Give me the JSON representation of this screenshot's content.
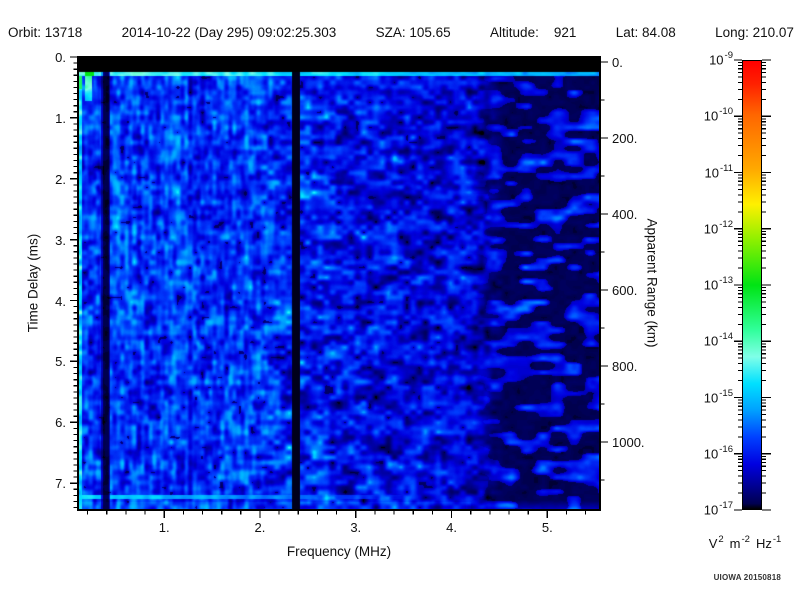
{
  "header": {
    "segments": [
      "Orbit: 13718",
      "2014-10-22 (Day 295) 09:02:25.303",
      "SZA: 105.65",
      "Altitude:    921",
      "Lat: 84.08",
      "Long: 210.07"
    ]
  },
  "plot": {
    "xlabel": "Frequency (MHz)",
    "ylabel": "Time Delay (ms)",
    "y2label": "Apparent Range (km)",
    "x_tick_labels": [
      "1.",
      "2.",
      "3.",
      "4.",
      "5."
    ],
    "y_tick_labels": [
      "0.",
      "1.",
      "2.",
      "3.",
      "4.",
      "5.",
      "6.",
      "7."
    ],
    "y2_tick_labels": [
      "0.",
      "200.",
      "400.",
      "600.",
      "800.",
      "1000."
    ]
  },
  "colorbar": {
    "base": "10",
    "exponents": [
      "-9",
      "-10",
      "-11",
      "-12",
      "-13",
      "-14",
      "-15",
      "-16",
      "-17"
    ],
    "unit_parts": [
      {
        "t": "V",
        "e": "2"
      },
      {
        "t": "m",
        "e": "-2"
      },
      {
        "t": "Hz",
        "e": "-1"
      }
    ]
  },
  "credit": "UIOWA 20150818",
  "chart_data": {
    "type": "heatmap",
    "description": "Radar sounder ionogram spectrogram: spectral density vs frequency and time delay. Noisy blue field with cyan speckles, brightest below 2 MHz, fading to black above ~4.5 MHz.",
    "xlabel": "Frequency (MHz)",
    "ylabel": "Time Delay (ms)",
    "y2label": "Apparent Range (km)",
    "x_range_mhz": [
      0.1,
      5.55
    ],
    "y_range_ms": [
      0,
      7.44
    ],
    "x_major_ticks": [
      1,
      2,
      3,
      4,
      5
    ],
    "x_minor_step_mhz": 0.2,
    "y_major_ticks": [
      0,
      1,
      2,
      3,
      4,
      5,
      6,
      7
    ],
    "y_minor_step_ms": 0.1,
    "y2_major_ticks_km": [
      0,
      200,
      400,
      600,
      800,
      1000
    ],
    "y2_minor_step_km": 100,
    "intensity_scale": {
      "unit": "V^2 m^-2 Hz^-1",
      "log_min_exp": -17,
      "log_max_exp": -9,
      "scale": "log"
    },
    "colormap_stops": [
      [
        0.0,
        [
          0,
          0,
          0
        ]
      ],
      [
        0.012,
        [
          0,
          0,
          80
        ]
      ],
      [
        0.05,
        [
          0,
          0,
          144
        ]
      ],
      [
        0.1,
        [
          0,
          0,
          224
        ]
      ],
      [
        0.16,
        [
          0,
          64,
          255
        ]
      ],
      [
        0.22,
        [
          0,
          160,
          255
        ]
      ],
      [
        0.28,
        [
          0,
          224,
          255
        ]
      ],
      [
        0.34,
        [
          128,
          255,
          232
        ]
      ],
      [
        0.4,
        [
          48,
          255,
          154
        ]
      ],
      [
        0.5,
        [
          0,
          228,
          20
        ]
      ],
      [
        0.6,
        [
          140,
          240,
          0
        ]
      ],
      [
        0.68,
        [
          255,
          240,
          0
        ]
      ],
      [
        0.76,
        [
          255,
          168,
          0
        ]
      ],
      [
        0.88,
        [
          255,
          102,
          0
        ]
      ],
      [
        0.95,
        [
          255,
          32,
          0
        ]
      ],
      [
        1.0,
        [
          255,
          0,
          0
        ]
      ]
    ],
    "features": {
      "seed": 20150818,
      "blank_band_ms": 0.235,
      "surface_line_ms": [
        0.235,
        0.295
      ],
      "line_green_segments_mhz": [
        [
          0.17,
          0.26
        ],
        [
          0.33,
          0.38
        ]
      ],
      "green_streak": {
        "mhz": [
          0.17,
          0.245
        ],
        "ms": [
          0.24,
          0.72
        ]
      },
      "dark_column_1_mhz": [
        0.355,
        0.415
      ],
      "dark_column_2_mhz": [
        2.33,
        2.41
      ],
      "right_fade_mhz": [
        4.15,
        4.6
      ],
      "bright_row": {
        "ms": [
          7.18,
          7.25
        ],
        "max_mhz": 3.5
      },
      "base_by_mhz": [
        [
          0.1,
          0.15
        ],
        [
          1.9,
          0.15
        ],
        [
          2.45,
          0.13
        ],
        [
          3.3,
          0.112
        ],
        [
          4.1,
          0.096
        ],
        [
          4.65,
          0.052
        ],
        [
          5.55,
          0.048
        ]
      ],
      "amp_by_mhz": [
        [
          0.1,
          0.125
        ],
        [
          1.9,
          0.12
        ],
        [
          2.45,
          0.105
        ],
        [
          3.3,
          0.09
        ],
        [
          4.1,
          0.08
        ],
        [
          5.55,
          0.065
        ]
      ],
      "streak_fade_mhz": [
        1.7,
        2.5
      ]
    }
  }
}
